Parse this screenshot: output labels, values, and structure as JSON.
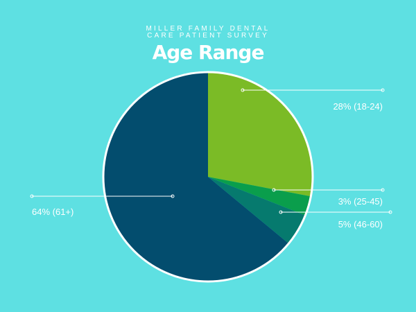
{
  "chart_data": {
    "type": "pie",
    "subtitle": [
      "MILLER FAMILY DENTAL",
      "CARE PATIENT SURVEY"
    ],
    "title": "Age Range",
    "slices": [
      {
        "label": "28% (18-24)",
        "category": "18-24",
        "value": 28,
        "color": "#7bbb26"
      },
      {
        "label": "3% (25-45)",
        "category": "25-45",
        "value": 3,
        "color": "#0a9e4c"
      },
      {
        "label": "5% (46-60)",
        "category": "46-60",
        "value": 5,
        "color": "#067a6e"
      },
      {
        "label": "64% (61+)",
        "category": "61+",
        "value": 64,
        "color": "#034d6e"
      }
    ],
    "start_angle": "12 o'clock",
    "direction": "clockwise",
    "border_color": "#ffffff"
  }
}
